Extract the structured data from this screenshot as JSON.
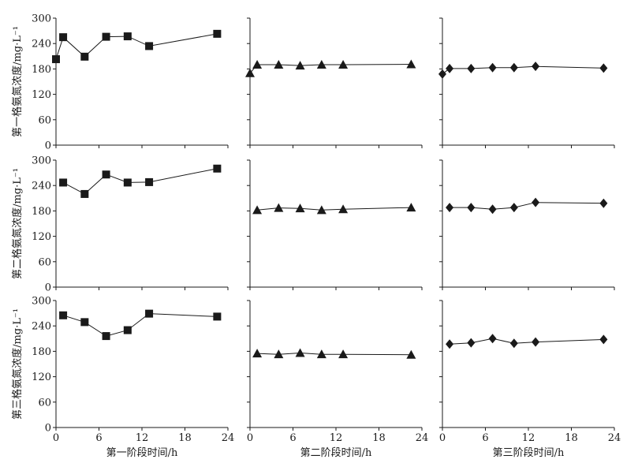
{
  "chart_data": {
    "type": "scatter",
    "layout": "3x3 small multiples, lines connecting markers",
    "grid": false,
    "legend": "none",
    "row_ylabels": [
      "第一格氨氮浓度/mg·L⁻¹",
      "第二格氨氮浓度/mg·L⁻¹",
      "第三格氨氮浓度/mg·L⁻¹"
    ],
    "col_xlabels": [
      "第一阶段时间/h",
      "第二阶段时间/h",
      "第三阶段时间/h"
    ],
    "xlim": [
      0,
      24
    ],
    "ylim": [
      0,
      300
    ],
    "x_ticks": [
      "0",
      "6",
      "12",
      "18",
      "24"
    ],
    "y_ticks": [
      "0",
      "60",
      "120",
      "180",
      "240",
      "300"
    ],
    "markers": [
      "square",
      "triangle",
      "diamond"
    ],
    "series_color": "#1a1a1a",
    "panels": [
      {
        "row": 1,
        "col": 1,
        "marker": "square",
        "x": [
          0,
          1,
          4,
          7,
          10,
          13,
          22.5
        ],
        "y": [
          203,
          255,
          209,
          256,
          257,
          234,
          263
        ]
      },
      {
        "row": 1,
        "col": 2,
        "marker": "triangle",
        "x": [
          0,
          1,
          4,
          7,
          10,
          13,
          22.5
        ],
        "y": [
          170,
          190,
          190,
          188,
          190,
          190,
          191
        ]
      },
      {
        "row": 1,
        "col": 3,
        "marker": "diamond",
        "x": [
          0,
          1,
          4,
          7,
          10,
          13,
          22.5
        ],
        "y": [
          168,
          181,
          181,
          183,
          183,
          186,
          182
        ]
      },
      {
        "row": 2,
        "col": 1,
        "marker": "square",
        "x": [
          1,
          4,
          7,
          10,
          13,
          22.5
        ],
        "y": [
          247,
          220,
          266,
          247,
          248,
          280
        ]
      },
      {
        "row": 2,
        "col": 2,
        "marker": "triangle",
        "x": [
          1,
          4,
          7,
          10,
          13,
          22.5
        ],
        "y": [
          182,
          187,
          186,
          182,
          184,
          188
        ]
      },
      {
        "row": 2,
        "col": 3,
        "marker": "diamond",
        "x": [
          1,
          4,
          7,
          10,
          13,
          22.5
        ],
        "y": [
          188,
          188,
          184,
          188,
          200,
          198
        ]
      },
      {
        "row": 3,
        "col": 1,
        "marker": "square",
        "x": [
          1,
          4,
          7,
          10,
          13,
          22.5
        ],
        "y": [
          265,
          249,
          216,
          230,
          269,
          262
        ]
      },
      {
        "row": 3,
        "col": 2,
        "marker": "triangle",
        "x": [
          1,
          4,
          7,
          10,
          13,
          22.5
        ],
        "y": [
          175,
          173,
          176,
          173,
          173,
          172
        ]
      },
      {
        "row": 3,
        "col": 3,
        "marker": "diamond",
        "x": [
          1,
          4,
          7,
          10,
          13,
          22.5
        ],
        "y": [
          197,
          200,
          210,
          199,
          202,
          208
        ]
      }
    ]
  }
}
